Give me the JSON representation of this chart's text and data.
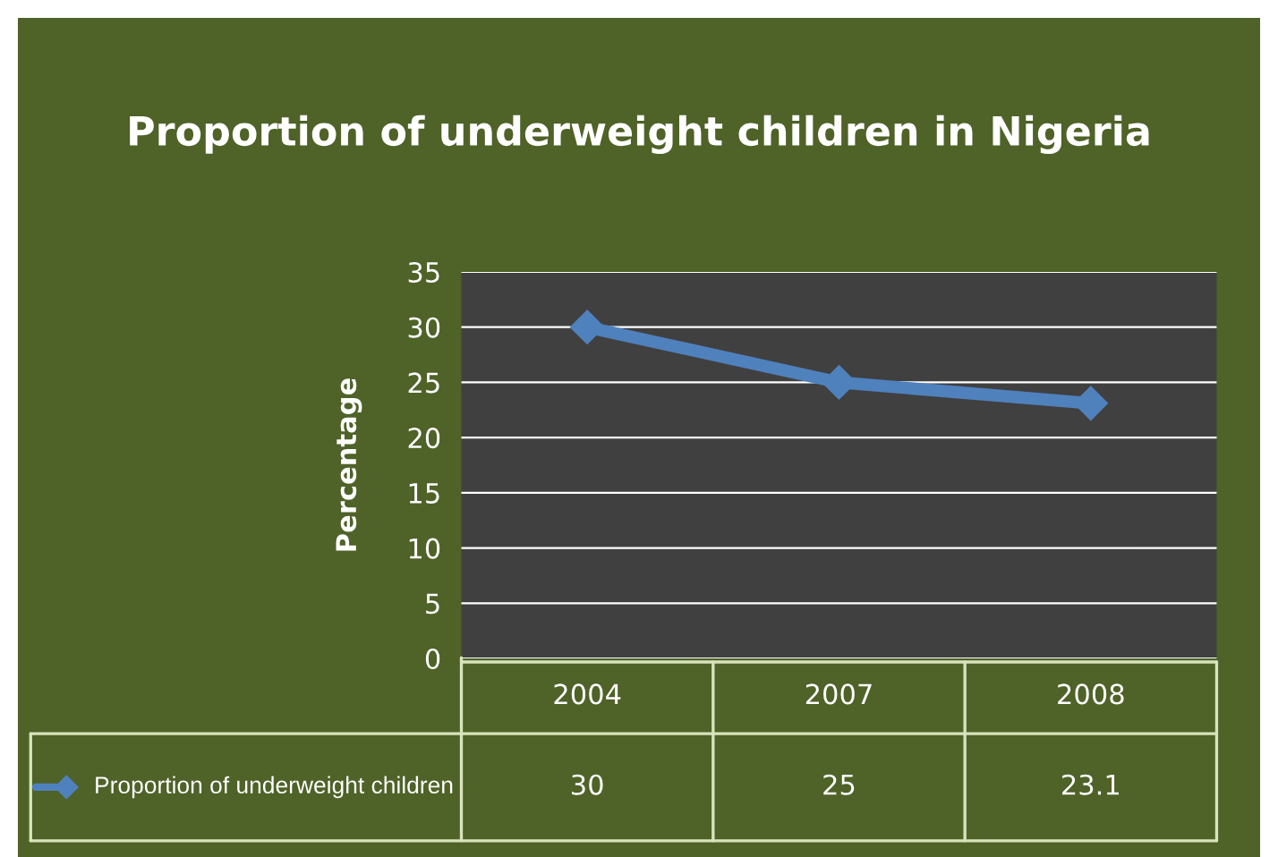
{
  "chart_data": {
    "type": "line",
    "title": "Proportion of underweight children in Nigeria",
    "ylabel": "Percentage",
    "categories": [
      "2004",
      "2007",
      "2008"
    ],
    "series": [
      {
        "name": "Proportion of underweight children",
        "color": "#4f81bd",
        "values": [
          30,
          25,
          23.1
        ]
      }
    ],
    "ylim": [
      0,
      35
    ],
    "yticks": [
      0,
      5,
      10,
      15,
      20,
      25,
      30,
      35
    ],
    "grid": "y",
    "marker": "diamond",
    "line_style": "solid",
    "data_labels": true
  }
}
